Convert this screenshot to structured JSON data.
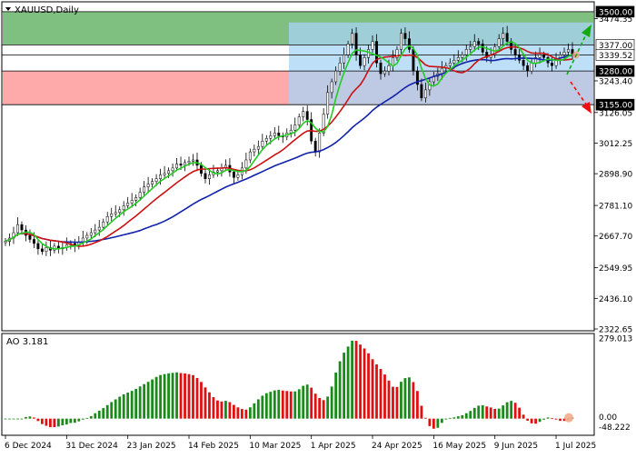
{
  "symbol_label": "XAUUSD,Daily",
  "ao_label": "AO 3.181",
  "colors": {
    "green_zone": "#7fbf7f",
    "red_zone": "#ffaaaa",
    "blue_zone": "#a8d4f5",
    "ma_fast": "#22cc22",
    "ma_mid": "#cc1111",
    "ma_slow": "#1122aa",
    "ao_up": "#1a8a1a",
    "ao_down": "#e01010",
    "arrow_up": "#11aa11",
    "arrow_down": "#ee1111"
  },
  "chart_data": [
    {
      "type": "candlestick",
      "title": "XAUUSD,Daily",
      "ylim": [
        2322.65,
        3530
      ],
      "y_tick_labels": [
        "3474.35",
        "3377.00",
        "3339.52",
        "3280.00",
        "3243.40",
        "3155.00",
        "3126.05",
        "3012.25",
        "2898.90",
        "2781.10",
        "2667.70",
        "2549.95",
        "2436.10",
        "2322.65"
      ],
      "levels": [
        {
          "label": "3500.00",
          "value": 3500,
          "style": "black"
        },
        {
          "label": "3377.00",
          "value": 3377,
          "style": "plain"
        },
        {
          "label": "3339.52",
          "value": 3339.52,
          "style": "current"
        },
        {
          "label": "3280.00",
          "value": 3280,
          "style": "black"
        },
        {
          "label": "3155.00",
          "value": 3155,
          "style": "black"
        }
      ],
      "zones": [
        {
          "name": "buy-zone",
          "from": 3377,
          "to": 3500,
          "color": "#7fbf7f"
        },
        {
          "name": "sell-zone",
          "from": 3155,
          "to": 3280,
          "color": "#ffaaaa"
        },
        {
          "name": "range-zone",
          "from": 3155,
          "to": 3460,
          "color": "#a8d4f5"
        }
      ],
      "x_labels": [
        "6 Dec 2024",
        "31 Dec 2024",
        "23 Jan 2025",
        "14 Feb 2025",
        "10 Mar 2025",
        "1 Apr 2025",
        "24 Apr 2025",
        "16 May 2025",
        "9 Jun 2025",
        "1 Jul 2025"
      ],
      "x_label_index": [
        0,
        15,
        30,
        45,
        60,
        75,
        90,
        105,
        120,
        135
      ],
      "close": [
        2648,
        2660,
        2680,
        2710,
        2690,
        2670,
        2655,
        2640,
        2620,
        2610,
        2625,
        2615,
        2630,
        2620,
        2625,
        2635,
        2640,
        2630,
        2645,
        2660,
        2670,
        2680,
        2690,
        2700,
        2720,
        2740,
        2750,
        2755,
        2765,
        2780,
        2790,
        2800,
        2810,
        2830,
        2850,
        2860,
        2870,
        2880,
        2895,
        2900,
        2910,
        2920,
        2935,
        2930,
        2940,
        2945,
        2950,
        2930,
        2900,
        2880,
        2895,
        2905,
        2910,
        2920,
        2930,
        2905,
        2885,
        2895,
        2920,
        2950,
        2980,
        2990,
        3000,
        3020,
        3030,
        3040,
        3050,
        3040,
        3035,
        3050,
        3060,
        3080,
        3110,
        3130,
        3100,
        3020,
        2980,
        3050,
        3120,
        3200,
        3240,
        3280,
        3310,
        3340,
        3380,
        3420,
        3340,
        3300,
        3330,
        3360,
        3390,
        3310,
        3270,
        3280,
        3300,
        3330,
        3360,
        3420,
        3400,
        3360,
        3280,
        3230,
        3180,
        3210,
        3240,
        3260,
        3270,
        3290,
        3300,
        3310,
        3320,
        3330,
        3340,
        3360,
        3370,
        3390,
        3380,
        3350,
        3330,
        3340,
        3370,
        3400,
        3420,
        3390,
        3360,
        3340,
        3320,
        3300,
        3280,
        3310,
        3330,
        3340,
        3330,
        3310,
        3300,
        3320,
        3340,
        3350,
        3360,
        3339.52
      ],
      "ma_fast_period": 5,
      "ma_mid_period": 13,
      "ma_slow_period": 34
    },
    {
      "type": "bar",
      "title": "AO 3.181",
      "ylim": [
        -48.222,
        279.013
      ],
      "y_tick_labels": [
        "279.013",
        "0.00",
        "-48.222"
      ],
      "last_value": 3.181
    }
  ],
  "price_arrows": {
    "up_target": "3500.00",
    "down_target": "3155.00"
  }
}
